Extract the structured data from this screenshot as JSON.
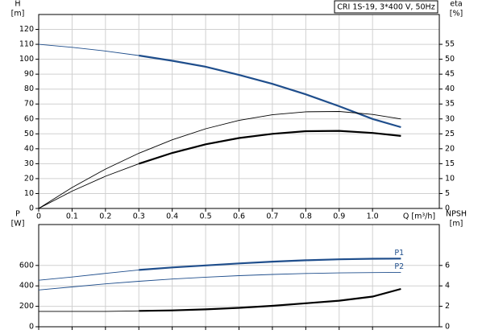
{
  "chart_data": [
    {
      "type": "line",
      "title": "CRI 1S-19, 3*400 V, 50Hz",
      "ylabel": "H",
      "yunit": "[m]",
      "y2label": "eta",
      "y2unit": "[%]",
      "xlabel": "Q [m³/h]",
      "x": [
        0,
        0.1,
        0.2,
        0.3,
        0.4,
        0.5,
        0.6,
        0.7,
        0.8,
        0.9,
        1.0,
        1.085
      ],
      "xlim": [
        0,
        1.2
      ],
      "xticks": [
        0,
        0.1,
        0.2,
        0.3,
        0.4,
        0.5,
        0.6,
        0.7,
        0.8,
        0.9,
        {
          "value": 1,
          "label": "1.0"
        }
      ],
      "xtick_labels": true,
      "ylim": [
        0,
        130
      ],
      "yticks": [
        0,
        10,
        20,
        30,
        40,
        50,
        60,
        70,
        80,
        90,
        100,
        110,
        120
      ],
      "y2lim": [
        0,
        65
      ],
      "y2ticks": [
        0,
        5,
        10,
        15,
        20,
        25,
        30,
        35,
        40,
        45,
        50,
        55
      ],
      "grid": true,
      "series": [
        {
          "color": "#1f4e8c",
          "line_width": "thin",
          "values": [
            110,
            108,
            105.5,
            102.5,
            null,
            null,
            null,
            null,
            null,
            null,
            null,
            null
          ]
        },
        {
          "color": "#1f4e8c",
          "line_width": "thick",
          "values": [
            null,
            null,
            null,
            102.5,
            99,
            95,
            89.5,
            83.5,
            76.5,
            68.5,
            60,
            54.5
          ]
        },
        {
          "color": "#000000",
          "line_width": "thin",
          "axis": "y2",
          "values": [
            0,
            7,
            13.2,
            18.5,
            23,
            26.7,
            29.5,
            31.4,
            32.4,
            32.5,
            31.5,
            30
          ]
        },
        {
          "color": "#000000",
          "line_width": "thin",
          "axis": "y2",
          "values": [
            0,
            5.8,
            10.8,
            15,
            null,
            null,
            null,
            null,
            null,
            null,
            null,
            null
          ]
        },
        {
          "color": "#000000",
          "line_width": "thick",
          "axis": "y2",
          "values": [
            null,
            null,
            null,
            15,
            18.6,
            21.5,
            23.6,
            25,
            25.9,
            26,
            25.3,
            24.3
          ]
        }
      ]
    },
    {
      "type": "line",
      "ylabel": "P",
      "yunit": "[W]",
      "y2label": "NPSH",
      "y2unit": "[m]",
      "x": [
        0,
        0.1,
        0.2,
        0.3,
        0.4,
        0.5,
        0.6,
        0.7,
        0.8,
        0.9,
        1.0,
        1.085
      ],
      "xlim": [
        0,
        1.2
      ],
      "xticks": [
        0,
        0.1,
        0.2,
        0.3,
        0.4,
        0.5,
        0.6,
        0.7,
        0.8,
        0.9,
        1
      ],
      "xtick_labels": false,
      "ylim": [
        0,
        1000
      ],
      "yticks": [
        0,
        200,
        400,
        600
      ],
      "y2lim": [
        0,
        10
      ],
      "y2ticks": [
        0,
        2,
        4,
        6
      ],
      "grid": true,
      "series": [
        {
          "color": "#1f4e8c",
          "line_width": "thin",
          "values": [
            455,
            487,
            522,
            556,
            null,
            null,
            null,
            null,
            null,
            null,
            null,
            null
          ]
        },
        {
          "name": "P1",
          "color": "#1f4e8c",
          "line_width": "thick",
          "values": [
            null,
            null,
            null,
            556,
            580,
            600,
            620,
            637,
            650,
            660,
            665,
            667
          ]
        },
        {
          "name": "P2",
          "color": "#1f4e8c",
          "line_width": "thin",
          "values": [
            360,
            390,
            420,
            445,
            467,
            485,
            500,
            512,
            521,
            527,
            530,
            532
          ]
        },
        {
          "color": "#000000",
          "line_width": "thin",
          "axis": "y2",
          "values": [
            1.5,
            1.5,
            1.5,
            1.55,
            null,
            null,
            null,
            null,
            null,
            null,
            null,
            null
          ]
        },
        {
          "color": "#000000",
          "line_width": "thick",
          "axis": "y2",
          "values": [
            null,
            null,
            null,
            1.55,
            1.6,
            1.7,
            1.85,
            2.05,
            2.3,
            2.55,
            2.95,
            3.7
          ]
        }
      ]
    }
  ]
}
